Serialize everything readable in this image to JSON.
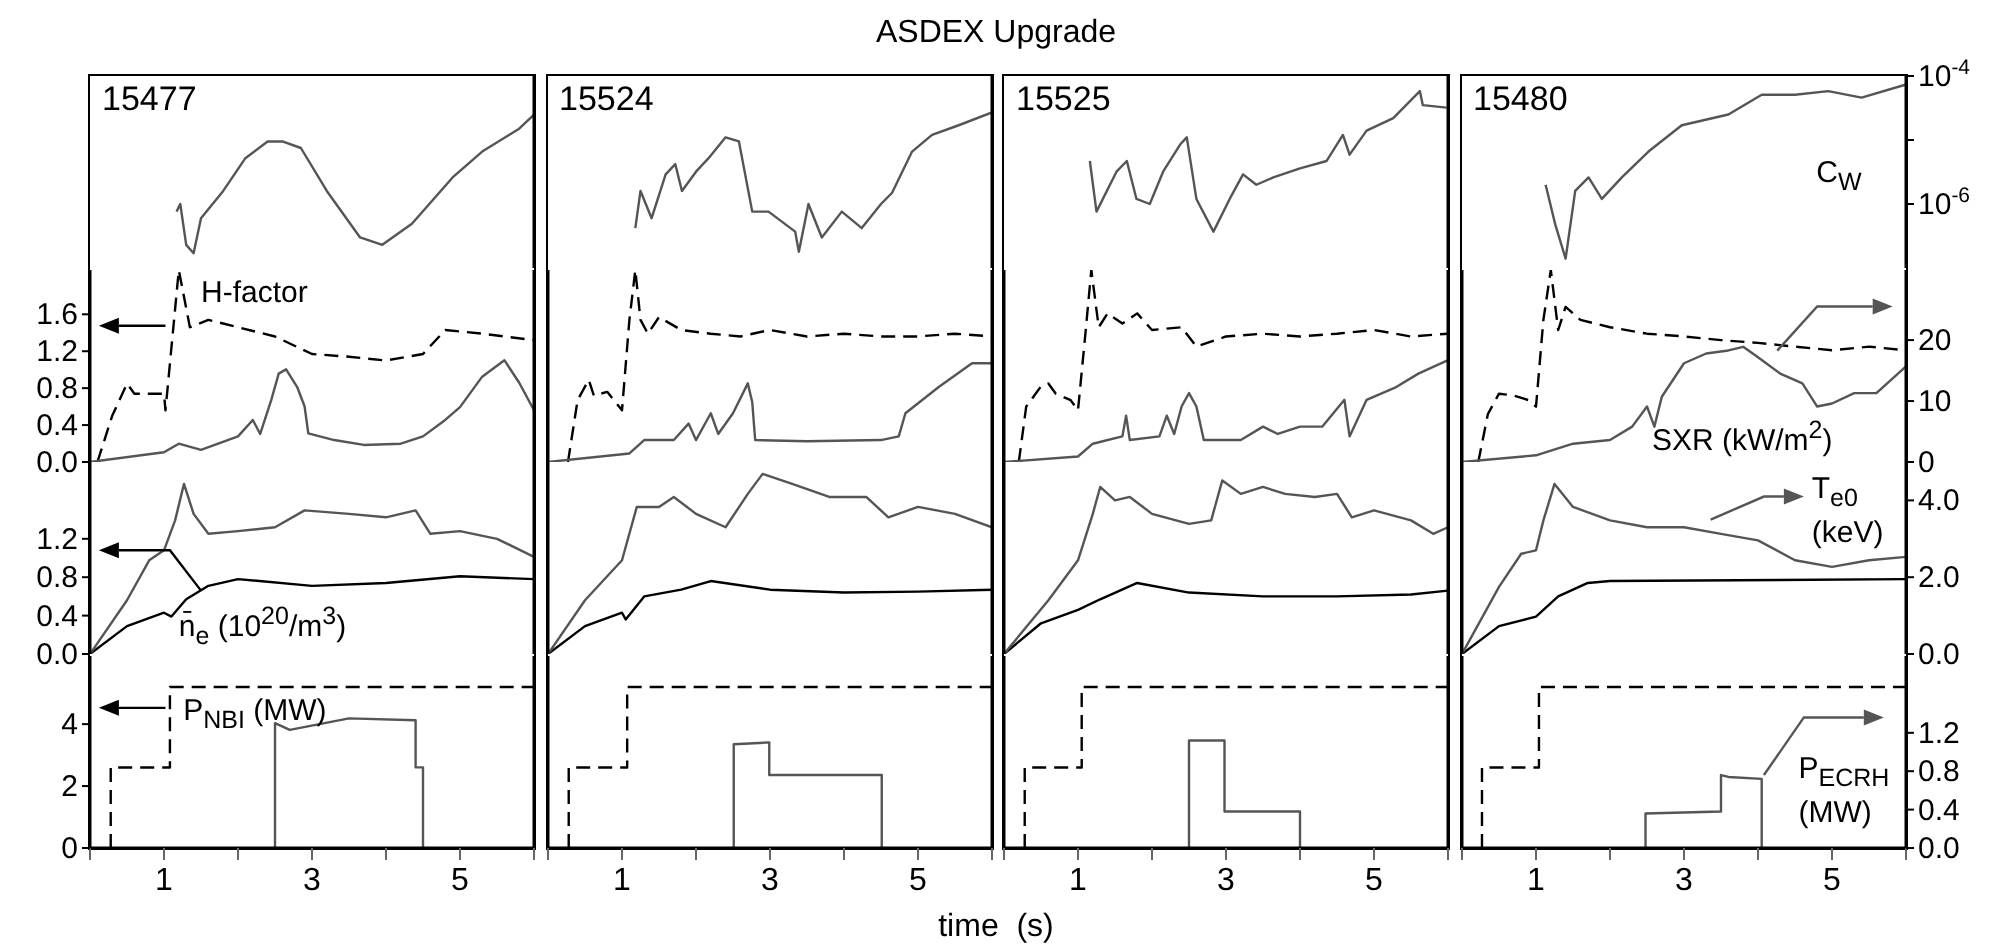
{
  "chart_data": [
    {
      "type": "line",
      "annotations": [
        "15477"
      ],
      "xlim": [
        0,
        6
      ],
      "y2lim": [
        1e-07,
        0.0001
      ],
      "log": "y2",
      "tick_labels": false,
      "series": [
        {
          "color": "#555555",
          "axis": "y2",
          "line_style": "solid",
          "x": [
            1.17,
            1.22,
            1.3,
            1.4,
            1.5,
            1.8,
            2.1,
            2.4,
            2.6,
            2.85,
            3.2,
            3.65,
            3.95,
            4.35,
            4.9,
            5.3,
            5.8,
            6.0
          ],
          "values": [
            7.6e-07,
            1e-06,
            2.3e-07,
            1.7e-07,
            6e-07,
            1.6e-06,
            5.2e-06,
            9.5e-06,
            9.5e-06,
            7.5e-06,
            1.6e-06,
            3e-07,
            2.3e-07,
            4.9e-07,
            2.6e-06,
            6.6e-06,
            1.5e-05,
            2.5e-05
          ]
        }
      ]
    },
    {
      "type": "line",
      "title": "ASDEX Upgrade",
      "annotations": [
        "15524"
      ],
      "xlim": [
        0,
        6
      ],
      "y2lim": [
        1e-07,
        0.0001
      ],
      "log": "y2",
      "tick_labels": false,
      "series": [
        {
          "color": "#555555",
          "axis": "y2",
          "line_style": "solid",
          "x": [
            1.18,
            1.25,
            1.4,
            1.59,
            1.72,
            1.81,
            2.0,
            2.17,
            2.4,
            2.58,
            2.76,
            2.98,
            3.34,
            3.39,
            3.52,
            3.7,
            3.97,
            4.24,
            4.5,
            4.65,
            4.92,
            5.19,
            5.55,
            6.0
          ],
          "values": [
            4.2e-07,
            1.6e-06,
            6e-07,
            2.9e-06,
            4.2e-06,
            1.6e-06,
            3.2e-06,
            5.2e-06,
            1.1e-05,
            9.5e-06,
            7.6e-07,
            7.6e-07,
            3.7e-07,
            1.8e-07,
            1e-06,
            3e-07,
            7.6e-07,
            4.2e-07,
            1e-06,
            1.5e-06,
            6.6e-06,
            1.2e-05,
            1.7e-05,
            2.7e-05
          ]
        }
      ]
    },
    {
      "type": "line",
      "annotations": [
        "15525"
      ],
      "xlim": [
        0,
        6
      ],
      "y2lim": [
        1e-07,
        0.0001
      ],
      "log": "y2",
      "tick_labels": false,
      "series": [
        {
          "color": "#555555",
          "axis": "y2",
          "line_style": "solid",
          "x": [
            1.16,
            1.25,
            1.52,
            1.66,
            1.79,
            1.97,
            2.15,
            2.38,
            2.47,
            2.6,
            2.83,
            3.05,
            3.23,
            3.41,
            3.64,
            4.0,
            4.36,
            4.58,
            4.67,
            4.9,
            5.26,
            5.62,
            5.66,
            5.98
          ],
          "values": [
            4.7e-06,
            7.6e-07,
            3.2e-06,
            4.7e-06,
            1.2e-06,
            1e-06,
            3.2e-06,
            8.5e-06,
            1.1e-05,
            1.2e-06,
            3.7e-07,
            1.2e-06,
            2.9e-06,
            2e-06,
            2.6e-06,
            3.6e-06,
            4.7e-06,
            1.2e-05,
            5.9e-06,
            1.4e-05,
            2.2e-05,
            5.8e-05,
            3.5e-05,
            3.2e-05
          ]
        }
      ]
    },
    {
      "type": "line",
      "annotations": [
        "15480"
      ],
      "xlim": [
        0,
        6
      ],
      "y2lim": [
        1e-07,
        0.0001
      ],
      "y2ticks": [
        {
          "value": 0.0001,
          "label": "10$^{-4}$"
        },
        {
          "value": 1e-05,
          "label": null
        },
        {
          "value": 1e-06,
          "label": "10$^{-6}$"
        }
      ],
      "log": "y2",
      "tick_labels": "y2",
      "series": [
        {
          "name": "C$_{W}$",
          "color": "#555555",
          "axis": "y2",
          "line_style": "solid",
          "x": [
            1.13,
            1.26,
            1.4,
            1.53,
            1.71,
            1.89,
            2.16,
            2.52,
            2.97,
            3.6,
            4.05,
            4.5,
            4.95,
            5.4,
            5.99
          ],
          "values": [
            2e-06,
            4.8e-07,
            1.4e-07,
            1.6e-06,
            2.6e-06,
            1.2e-06,
            2.6e-06,
            6.6e-06,
            1.7e-05,
            2.5e-05,
            5.1e-05,
            5.1e-05,
            5.8e-05,
            4.6e-05,
            7.3e-05
          ]
        }
      ]
    },
    {
      "type": "line",
      "xlim": [
        0,
        6
      ],
      "ylim": [
        0,
        2.08
      ],
      "yticks": [
        {
          "value": 0,
          "label": "0.0"
        },
        0.4,
        0.8,
        1.2,
        1.6
      ],
      "y2lim": [
        0,
        31.5
      ],
      "tick_labels": "y",
      "series": [
        {
          "name": "H-factor",
          "color": "#000000",
          "axis": "y",
          "line_style": "dashed",
          "x": [
            0.1,
            0.3,
            0.5,
            0.6,
            1.0,
            1.02,
            1.2,
            1.35,
            1.6,
            2.0,
            2.5,
            3.0,
            3.5,
            4.0,
            4.5,
            4.8,
            5.3,
            6.0
          ],
          "values": [
            0,
            0.5,
            0.85,
            0.74,
            0.74,
            0.56,
            2.08,
            1.46,
            1.54,
            1.46,
            1.36,
            1.17,
            1.14,
            1.1,
            1.17,
            1.43,
            1.39,
            1.32
          ]
        },
        {
          "color": "#555555",
          "axis": "y2",
          "line_style": "solid",
          "x": [
            0,
            1.0,
            1.2,
            1.5,
            2.0,
            2.2,
            2.3,
            2.45,
            2.55,
            2.65,
            2.8,
            2.9,
            2.95,
            3.3,
            3.7,
            4.2,
            4.5,
            4.8,
            5.0,
            5.3,
            5.6,
            5.8,
            6.0
          ],
          "values": [
            0,
            1.6,
            3.0,
            2.0,
            4.2,
            6.9,
            4.6,
            10.2,
            14.5,
            15.2,
            12.3,
            9.1,
            4.7,
            3.6,
            2.8,
            3.0,
            4.2,
            6.9,
            9.0,
            14.0,
            16.7,
            13.0,
            8.5
          ]
        }
      ]
    },
    {
      "type": "line",
      "xlim": [
        0,
        6
      ],
      "ylim": [
        0,
        2.08
      ],
      "y2lim": [
        0,
        31.5
      ],
      "tick_labels": false,
      "series": [
        {
          "color": "#000000",
          "axis": "y",
          "line_style": "dashed",
          "x": [
            0.27,
            0.4,
            0.55,
            0.62,
            0.8,
            1.0,
            1.1,
            1.18,
            1.25,
            1.35,
            1.5,
            1.8,
            2.2,
            2.6,
            3.0,
            3.5,
            4.0,
            4.5,
            5.0,
            5.5,
            6.0
          ],
          "values": [
            0,
            0.67,
            0.89,
            0.72,
            0.76,
            0.56,
            1.54,
            2.08,
            1.54,
            1.39,
            1.57,
            1.43,
            1.39,
            1.36,
            1.43,
            1.36,
            1.39,
            1.36,
            1.36,
            1.39,
            1.36
          ]
        },
        {
          "color": "#555555",
          "axis": "y2",
          "line_style": "solid",
          "x": [
            0,
            1.1,
            1.3,
            1.7,
            1.9,
            2.0,
            2.2,
            2.3,
            2.5,
            2.7,
            2.76,
            2.8,
            3.5,
            4.5,
            4.74,
            4.83,
            5.28,
            5.73,
            6.0
          ],
          "values": [
            0,
            1.4,
            3.6,
            3.6,
            6.3,
            3.6,
            8.0,
            4.6,
            8.0,
            12.9,
            9.8,
            3.6,
            3.4,
            3.6,
            4.2,
            8.0,
            12.3,
            16.2,
            16.2
          ]
        }
      ]
    },
    {
      "type": "line",
      "xlim": [
        0,
        6
      ],
      "ylim": [
        0,
        2.08
      ],
      "y2lim": [
        0,
        31.5
      ],
      "tick_labels": false,
      "series": [
        {
          "color": "#000000",
          "axis": "y",
          "line_style": "dashed",
          "x": [
            0.2,
            0.3,
            0.5,
            0.6,
            0.7,
            0.9,
            1.0,
            1.1,
            1.18,
            1.28,
            1.4,
            1.6,
            1.8,
            2.0,
            2.4,
            2.6,
            3.0,
            3.5,
            4.0,
            4.5,
            5.0,
            5.5,
            6.0
          ],
          "values": [
            0,
            0.6,
            0.82,
            0.85,
            0.74,
            0.67,
            0.56,
            1.39,
            2.08,
            1.46,
            1.61,
            1.5,
            1.61,
            1.43,
            1.46,
            1.25,
            1.36,
            1.39,
            1.36,
            1.39,
            1.43,
            1.36,
            1.39
          ]
        },
        {
          "color": "#555555",
          "axis": "y2",
          "line_style": "solid",
          "x": [
            0,
            1.0,
            1.2,
            1.6,
            1.65,
            1.7,
            2.1,
            2.2,
            2.3,
            2.4,
            2.5,
            2.6,
            2.7,
            3.2,
            3.5,
            3.7,
            4.0,
            4.3,
            4.6,
            4.67,
            4.9,
            5.3,
            5.6,
            6.0
          ],
          "values": [
            0,
            0.9,
            3.0,
            4.2,
            7.6,
            3.6,
            4.2,
            7.6,
            4.6,
            9.1,
            11.3,
            9.1,
            3.6,
            3.6,
            5.8,
            4.6,
            5.8,
            5.8,
            10.2,
            4.2,
            10.2,
            12.3,
            14.5,
            16.7
          ]
        }
      ]
    },
    {
      "type": "line",
      "xlim": [
        0,
        6
      ],
      "ylim": [
        0,
        2.08
      ],
      "y2lim": [
        0,
        31.5
      ],
      "y2ticks": [
        0,
        10,
        20
      ],
      "tick_labels": "y2",
      "series": [
        {
          "color": "#000000",
          "axis": "y",
          "line_style": "dashed",
          "x": [
            0.22,
            0.35,
            0.5,
            0.7,
            0.9,
            1.0,
            1.1,
            1.2,
            1.3,
            1.4,
            1.6,
            2.0,
            2.5,
            3.0,
            3.5,
            4.0,
            4.5,
            5.0,
            5.5,
            6.0
          ],
          "values": [
            0,
            0.52,
            0.74,
            0.72,
            0.67,
            0.6,
            1.54,
            2.08,
            1.43,
            1.68,
            1.54,
            1.46,
            1.39,
            1.36,
            1.32,
            1.29,
            1.25,
            1.21,
            1.25,
            1.21
          ]
        },
        {
          "name": "SXR (kW/m$^{2}$)",
          "color": "#555555",
          "axis": "y2",
          "line_style": "solid",
          "x": [
            0,
            1.0,
            1.5,
            2.0,
            2.3,
            2.5,
            2.6,
            2.7,
            3.0,
            3.3,
            3.6,
            3.8,
            4.0,
            4.3,
            4.6,
            4.8,
            5.0,
            5.3,
            5.6,
            6.0
          ],
          "values": [
            0,
            1.1,
            3.0,
            3.6,
            5.8,
            9.1,
            5.8,
            10.7,
            16.2,
            17.8,
            18.3,
            18.9,
            17.2,
            14.5,
            12.9,
            9.1,
            9.6,
            11.3,
            11.3,
            15.7
          ]
        }
      ]
    },
    {
      "type": "line",
      "xlim": [
        0,
        6
      ],
      "ylim": [
        0,
        2.0
      ],
      "yticks": [
        {
          "value": 0,
          "label": "0.0"
        },
        0.4,
        0.8,
        1.2
      ],
      "y2lim": [
        0,
        5.0
      ],
      "tick_labels": "y",
      "series": [
        {
          "name": "n̄$_{e}$  (10$^{20}$/m$^{3}$)",
          "color": "#000000",
          "axis": "y",
          "line_style": "solid",
          "x": [
            0,
            0.5,
            1.0,
            1.1,
            1.3,
            1.6,
            2.0,
            3.0,
            4.0,
            5.0,
            6.0
          ],
          "values": [
            0,
            0.29,
            0.43,
            0.39,
            0.57,
            0.71,
            0.78,
            0.71,
            0.74,
            0.81,
            0.78
          ]
        },
        {
          "color": "#555555",
          "axis": "y2",
          "line_style": "solid",
          "x": [
            0,
            0.5,
            0.8,
            1.0,
            1.15,
            1.27,
            1.4,
            1.6,
            2.0,
            2.5,
            2.9,
            3.5,
            4.0,
            4.4,
            4.6,
            5.0,
            5.5,
            6.0
          ],
          "values": [
            0,
            1.4,
            2.44,
            2.7,
            3.48,
            4.43,
            3.65,
            3.13,
            3.2,
            3.3,
            3.74,
            3.65,
            3.56,
            3.74,
            3.13,
            3.2,
            3.0,
            2.53
          ]
        }
      ]
    },
    {
      "type": "line",
      "xlim": [
        0,
        6
      ],
      "ylim": [
        0,
        2.0
      ],
      "y2lim": [
        0,
        5.0
      ],
      "tick_labels": false,
      "series": [
        {
          "color": "#000000",
          "axis": "y",
          "line_style": "solid",
          "x": [
            0,
            0.5,
            1.0,
            1.05,
            1.3,
            1.8,
            2.2,
            3.0,
            4.0,
            5.0,
            6.0
          ],
          "values": [
            0,
            0.29,
            0.43,
            0.36,
            0.6,
            0.67,
            0.76,
            0.67,
            0.64,
            0.65,
            0.67
          ]
        },
        {
          "color": "#555555",
          "axis": "y2",
          "line_style": "solid",
          "x": [
            0,
            0.5,
            1.0,
            1.2,
            1.5,
            1.7,
            2.0,
            2.4,
            2.7,
            2.9,
            3.3,
            3.8,
            4.3,
            4.6,
            5.0,
            5.5,
            6.0
          ],
          "values": [
            0,
            1.4,
            2.44,
            3.83,
            3.83,
            4.09,
            3.65,
            3.3,
            4.17,
            4.69,
            4.43,
            4.09,
            4.09,
            3.56,
            3.83,
            3.65,
            3.3
          ]
        }
      ]
    },
    {
      "type": "line",
      "xlim": [
        0,
        6
      ],
      "ylim": [
        0,
        2.0
      ],
      "y2lim": [
        0,
        5.0
      ],
      "tick_labels": false,
      "series": [
        {
          "color": "#000000",
          "axis": "y",
          "line_style": "solid",
          "x": [
            0,
            0.5,
            1.0,
            1.3,
            1.8,
            2.5,
            3.5,
            4.5,
            5.5,
            6.0
          ],
          "values": [
            0,
            0.32,
            0.46,
            0.57,
            0.74,
            0.64,
            0.6,
            0.6,
            0.62,
            0.66
          ]
        },
        {
          "color": "#555555",
          "axis": "y2",
          "line_style": "solid",
          "x": [
            0,
            0.6,
            1.0,
            1.2,
            1.3,
            1.5,
            1.7,
            2.0,
            2.5,
            2.8,
            2.95,
            3.2,
            3.5,
            3.8,
            4.2,
            4.5,
            4.7,
            5.0,
            5.5,
            5.8,
            6.0
          ],
          "values": [
            0,
            1.4,
            2.44,
            3.65,
            4.35,
            4.0,
            4.09,
            3.65,
            3.39,
            3.48,
            4.52,
            4.17,
            4.35,
            4.17,
            4.09,
            4.17,
            3.56,
            3.74,
            3.48,
            3.13,
            3.3
          ]
        }
      ]
    },
    {
      "type": "line",
      "xlim": [
        0,
        6
      ],
      "ylim": [
        0,
        2.0
      ],
      "y2lim": [
        0,
        5.0
      ],
      "y2ticks": [
        {
          "value": 0,
          "label": "0.0"
        },
        {
          "value": 2,
          "label": "2.0"
        },
        {
          "value": 4,
          "label": "4.0"
        }
      ],
      "tick_labels": "y2",
      "series": [
        {
          "color": "#000000",
          "axis": "y",
          "line_style": "solid",
          "x": [
            0,
            0.5,
            1.0,
            1.3,
            1.7,
            2.0,
            6.0
          ],
          "values": [
            0,
            0.29,
            0.39,
            0.6,
            0.74,
            0.76,
            0.78
          ]
        },
        {
          "name": "T$_{e0}$ (keV)",
          "color": "#555555",
          "axis": "y2",
          "line_style": "solid",
          "x": [
            0,
            0.5,
            0.8,
            1.0,
            1.1,
            1.25,
            1.5,
            2.0,
            2.5,
            3.0,
            3.5,
            4.0,
            4.5,
            5.0,
            5.5,
            6.0
          ],
          "values": [
            0,
            1.75,
            2.61,
            2.7,
            3.48,
            4.43,
            3.83,
            3.48,
            3.3,
            3.3,
            3.13,
            2.96,
            2.44,
            2.27,
            2.44,
            2.53
          ]
        }
      ]
    },
    {
      "type": "line",
      "xlim": [
        0,
        6
      ],
      "xticks": [
        {
          "value": 0,
          "label": null
        },
        1,
        {
          "value": 2,
          "label": null
        },
        3,
        {
          "value": 4,
          "label": null
        },
        5,
        {
          "value": 6,
          "label": null
        }
      ],
      "ylim": [
        0,
        6.2
      ],
      "yticks": [
        0,
        2,
        4
      ],
      "y2lim": [
        0,
        2.0
      ],
      "tick_labels": "xy",
      "series": [
        {
          "name": "P$_{NBI}$ (MW)",
          "color": "#000000",
          "axis": "y",
          "line_style": "dashed",
          "x": [
            0.28,
            0.28,
            1.08,
            1.08,
            6.0
          ],
          "values": [
            0,
            2.6,
            2.6,
            5.2,
            5.2
          ]
        },
        {
          "color": "#555555",
          "axis": "y2",
          "line_style": "solid",
          "x": [
            2.5,
            2.5,
            2.7,
            3.5,
            4.4,
            4.4,
            4.5,
            4.5
          ],
          "values": [
            0,
            1.3,
            1.23,
            1.35,
            1.33,
            0.84,
            0.84,
            0
          ]
        }
      ]
    },
    {
      "type": "line",
      "xlabel": "time  (s)",
      "xlim": [
        0,
        6
      ],
      "xticks": [
        {
          "value": 0,
          "label": null
        },
        1,
        {
          "value": 2,
          "label": null
        },
        3,
        {
          "value": 4,
          "label": null
        },
        5,
        {
          "value": 6,
          "label": null
        }
      ],
      "ylim": [
        0,
        6.2
      ],
      "y2lim": [
        0,
        2.0
      ],
      "tick_labels": "x",
      "series": [
        {
          "color": "#000000",
          "axis": "y",
          "line_style": "dashed",
          "x": [
            0.28,
            0.28,
            1.07,
            1.07,
            6.0
          ],
          "values": [
            0,
            2.6,
            2.6,
            5.2,
            5.2
          ]
        },
        {
          "color": "#555555",
          "axis": "y2",
          "line_style": "solid",
          "x": [
            2.51,
            2.51,
            2.99,
            2.99,
            4.51,
            4.51
          ],
          "values": [
            0,
            1.08,
            1.1,
            0.76,
            0.76,
            0
          ]
        }
      ]
    },
    {
      "type": "line",
      "xlim": [
        0,
        6
      ],
      "xticks": [
        {
          "value": 0,
          "label": null
        },
        1,
        {
          "value": 2,
          "label": null
        },
        3,
        {
          "value": 4,
          "label": null
        },
        5,
        {
          "value": 6,
          "label": null
        }
      ],
      "ylim": [
        0,
        6.2
      ],
      "y2lim": [
        0,
        2.0
      ],
      "tick_labels": "x",
      "series": [
        {
          "color": "#000000",
          "axis": "y",
          "line_style": "dashed",
          "x": [
            0.28,
            0.28,
            1.05,
            1.05,
            6.0
          ],
          "values": [
            0,
            2.6,
            2.6,
            5.2,
            5.2
          ]
        },
        {
          "color": "#555555",
          "axis": "y2",
          "line_style": "solid",
          "x": [
            2.5,
            2.5,
            2.98,
            2.98,
            4.0,
            4.0
          ],
          "values": [
            0,
            1.12,
            1.12,
            0.38,
            0.38,
            0
          ]
        }
      ]
    },
    {
      "type": "line",
      "xlim": [
        0,
        6
      ],
      "xticks": [
        {
          "value": 0,
          "label": null
        },
        1,
        {
          "value": 2,
          "label": null
        },
        3,
        {
          "value": 4,
          "label": null
        },
        5,
        {
          "value": 6,
          "label": null
        }
      ],
      "ylim": [
        0,
        6.2
      ],
      "y2lim": [
        0,
        2.0
      ],
      "y2ticks": [
        {
          "value": 0,
          "label": "0.0"
        },
        0.4,
        0.8,
        1.2
      ],
      "tick_labels": "xy2",
      "series": [
        {
          "color": "#000000",
          "axis": "y",
          "line_style": "dashed",
          "x": [
            0.27,
            0.27,
            1.04,
            1.04,
            6.0
          ],
          "values": [
            0,
            2.6,
            2.6,
            5.2,
            5.2
          ]
        },
        {
          "name": "P$_{ECRH}$ (MW)",
          "color": "#555555",
          "axis": "y2",
          "line_style": "solid",
          "x": [
            2.48,
            2.48,
            3.5,
            3.5,
            3.6,
            4.05,
            4.05
          ],
          "values": [
            0,
            0.36,
            0.38,
            0.76,
            0.74,
            0.72,
            0
          ]
        }
      ]
    }
  ]
}
